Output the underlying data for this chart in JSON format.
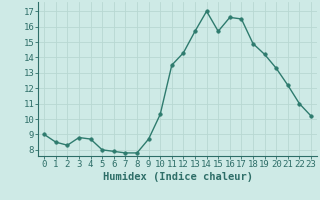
{
  "x": [
    0,
    1,
    2,
    3,
    4,
    5,
    6,
    7,
    8,
    9,
    10,
    11,
    12,
    13,
    14,
    15,
    16,
    17,
    18,
    19,
    20,
    21,
    22,
    23
  ],
  "y": [
    9.0,
    8.5,
    8.3,
    8.8,
    8.7,
    8.0,
    7.9,
    7.8,
    7.8,
    8.7,
    10.3,
    13.5,
    14.3,
    15.7,
    17.0,
    15.7,
    16.6,
    16.5,
    14.9,
    14.2,
    13.3,
    12.2,
    11.0,
    10.2
  ],
  "line_color": "#2e7b6e",
  "marker": "o",
  "marker_size": 2.5,
  "line_width": 1.0,
  "bg_color": "#ceeae6",
  "grid_color": "#b8d8d2",
  "xlabel": "Humidex (Indice chaleur)",
  "ylabel_ticks": [
    8,
    9,
    10,
    11,
    12,
    13,
    14,
    15,
    16,
    17
  ],
  "xlim": [
    -0.5,
    23.5
  ],
  "ylim": [
    7.6,
    17.6
  ],
  "xtick_labels": [
    "0",
    "1",
    "2",
    "3",
    "4",
    "5",
    "6",
    "7",
    "8",
    "9",
    "10",
    "11",
    "12",
    "13",
    "14",
    "15",
    "16",
    "17",
    "18",
    "19",
    "20",
    "21",
    "22",
    "23"
  ],
  "label_fontsize": 7.5,
  "tick_fontsize": 6.5
}
